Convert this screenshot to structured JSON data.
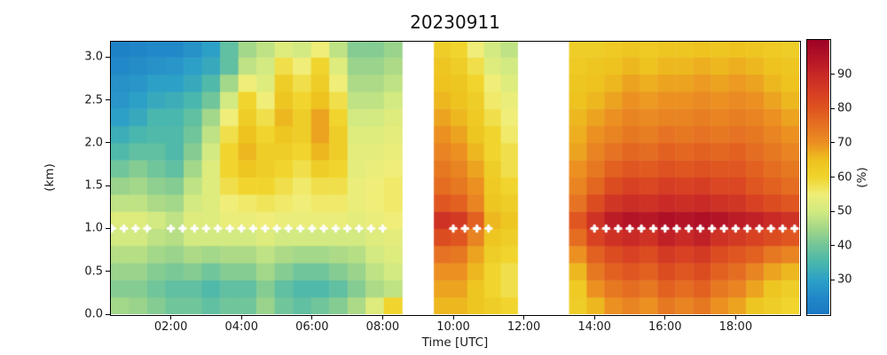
{
  "figure": {
    "background": "#ffffff"
  },
  "chart_data": {
    "type": "heatmap",
    "title": "20230911",
    "xlabel": "Time [UTC]",
    "ylabel": "(km)",
    "colorbar_label": "(%)",
    "xlim_hours": [
      0.3,
      19.8
    ],
    "ylim_km": [
      0,
      3.18
    ],
    "grid": false,
    "xtick_hours": [
      2,
      4,
      6,
      8,
      10,
      12,
      14,
      16,
      18
    ],
    "xtick_labels": [
      "02:00",
      "04:00",
      "06:00",
      "08:00",
      "10:00",
      "12:00",
      "14:00",
      "16:00",
      "18:00"
    ],
    "ytick_values": [
      0.0,
      0.5,
      1.0,
      1.5,
      2.0,
      2.5,
      3.0
    ],
    "ytick_labels": [
      "0.0",
      "0.5",
      "1.0",
      "1.5",
      "2.0",
      "2.5",
      "3.0"
    ],
    "colorbar": {
      "vmin": 20,
      "vmax": 100,
      "tick_values": [
        30,
        40,
        50,
        60,
        70,
        80,
        90
      ],
      "tick_labels": [
        "30",
        "40",
        "50",
        "60",
        "70",
        "80",
        "90"
      ],
      "stops": [
        [
          20,
          "#1a78c2"
        ],
        [
          25,
          "#2289c9"
        ],
        [
          30,
          "#2da0c8"
        ],
        [
          35,
          "#49b7ad"
        ],
        [
          40,
          "#71c59b"
        ],
        [
          45,
          "#a3d789"
        ],
        [
          50,
          "#d2ea81"
        ],
        [
          55,
          "#f0ee78"
        ],
        [
          60,
          "#f1d52e"
        ],
        [
          65,
          "#eec31f"
        ],
        [
          70,
          "#ec9022"
        ],
        [
          75,
          "#e67323"
        ],
        [
          80,
          "#e05620"
        ],
        [
          85,
          "#d63e24"
        ],
        [
          90,
          "#c92a26"
        ],
        [
          95,
          "#b31426"
        ],
        [
          100,
          "#a00426"
        ]
      ]
    },
    "altitude_step_km": 0.2,
    "rows_note": "values[0] is the 0.0-0.2 km band (bottom); values[15] is the 3.0-3.2 km band (top); units are relative humidity %",
    "segments": [
      {
        "t_start": 0.3,
        "t_end": 8.55,
        "values": [
          [
            45,
            44,
            42,
            40,
            40,
            38,
            40,
            40,
            44,
            40,
            38,
            40,
            42,
            46,
            52,
            60
          ],
          [
            42,
            42,
            40,
            38,
            38,
            36,
            38,
            38,
            42,
            38,
            36,
            36,
            38,
            42,
            46,
            48
          ],
          [
            44,
            44,
            42,
            41,
            42,
            40,
            42,
            42,
            45,
            42,
            40,
            40,
            42,
            44,
            48,
            50
          ],
          [
            47,
            47,
            45,
            44,
            46,
            45,
            46,
            46,
            48,
            46,
            45,
            45,
            46,
            47,
            50,
            52
          ],
          [
            50,
            50,
            48,
            47,
            50,
            50,
            50,
            50,
            52,
            50,
            50,
            50,
            50,
            50,
            52,
            53
          ],
          [
            52,
            52,
            50,
            48,
            52,
            52,
            54,
            54,
            55,
            54,
            54,
            54,
            54,
            53,
            54,
            55
          ],
          [
            48,
            48,
            46,
            45,
            50,
            52,
            55,
            56,
            57,
            56,
            55,
            56,
            56,
            54,
            55,
            56
          ],
          [
            44,
            45,
            43,
            42,
            48,
            52,
            58,
            60,
            60,
            58,
            56,
            58,
            58,
            54,
            55,
            56
          ],
          [
            40,
            42,
            40,
            38,
            45,
            52,
            60,
            64,
            62,
            60,
            58,
            62,
            60,
            53,
            54,
            55
          ],
          [
            36,
            38,
            38,
            36,
            42,
            50,
            60,
            66,
            62,
            62,
            60,
            66,
            62,
            53,
            53,
            54
          ],
          [
            33,
            35,
            36,
            36,
            40,
            48,
            58,
            65,
            60,
            64,
            62,
            68,
            62,
            52,
            52,
            53
          ],
          [
            30,
            32,
            35,
            35,
            38,
            45,
            55,
            62,
            58,
            66,
            62,
            68,
            60,
            50,
            50,
            52
          ],
          [
            28,
            30,
            32,
            33,
            35,
            40,
            50,
            60,
            55,
            64,
            60,
            65,
            58,
            48,
            48,
            50
          ],
          [
            27,
            28,
            30,
            30,
            32,
            36,
            45,
            55,
            52,
            62,
            58,
            62,
            55,
            46,
            46,
            48
          ],
          [
            25,
            26,
            27,
            28,
            30,
            32,
            38,
            48,
            50,
            58,
            55,
            60,
            52,
            44,
            44,
            46
          ],
          [
            23,
            24,
            25,
            25,
            27,
            30,
            38,
            45,
            48,
            52,
            50,
            55,
            48,
            42,
            42,
            44
          ]
        ]
      },
      {
        "t_start": 9.45,
        "t_end": 11.82,
        "values": [
          [
            66,
            66,
            64,
            62,
            60
          ],
          [
            68,
            68,
            64,
            60,
            58
          ],
          [
            70,
            70,
            66,
            60,
            58
          ],
          [
            75,
            74,
            68,
            62,
            60
          ],
          [
            82,
            80,
            72,
            64,
            62
          ],
          [
            88,
            86,
            78,
            66,
            64
          ],
          [
            80,
            78,
            72,
            64,
            62
          ],
          [
            76,
            74,
            70,
            63,
            60
          ],
          [
            74,
            72,
            68,
            62,
            58
          ],
          [
            72,
            70,
            66,
            60,
            58
          ],
          [
            70,
            68,
            64,
            60,
            56
          ],
          [
            68,
            66,
            63,
            58,
            55
          ],
          [
            66,
            65,
            62,
            56,
            54
          ],
          [
            65,
            64,
            60,
            55,
            52
          ],
          [
            64,
            62,
            58,
            52,
            50
          ],
          [
            62,
            60,
            55,
            50,
            48
          ]
        ]
      },
      {
        "t_start": 13.28,
        "t_end": 19.8,
        "values": [
          [
            62,
            66,
            70,
            72,
            70,
            74,
            72,
            74,
            70,
            68,
            64,
            62,
            60
          ],
          [
            63,
            70,
            74,
            76,
            74,
            78,
            76,
            78,
            74,
            72,
            68,
            64,
            62
          ],
          [
            66,
            74,
            78,
            80,
            78,
            82,
            80,
            82,
            78,
            76,
            72,
            68,
            66
          ],
          [
            70,
            78,
            82,
            84,
            82,
            86,
            84,
            86,
            82,
            80,
            78,
            74,
            72
          ],
          [
            76,
            84,
            88,
            90,
            88,
            92,
            90,
            92,
            88,
            86,
            84,
            82,
            80
          ],
          [
            80,
            88,
            93,
            95,
            94,
            96,
            95,
            96,
            95,
            93,
            92,
            90,
            88
          ],
          [
            75,
            82,
            87,
            89,
            88,
            90,
            89,
            90,
            88,
            87,
            84,
            82,
            80
          ],
          [
            72,
            77,
            82,
            84,
            83,
            85,
            84,
            85,
            83,
            83,
            80,
            78,
            76
          ],
          [
            70,
            74,
            78,
            80,
            79,
            81,
            80,
            81,
            80,
            80,
            78,
            76,
            74
          ],
          [
            68,
            72,
            75,
            77,
            76,
            78,
            77,
            78,
            77,
            78,
            76,
            74,
            72
          ],
          [
            67,
            70,
            72,
            74,
            73,
            75,
            74,
            75,
            74,
            75,
            74,
            72,
            70
          ],
          [
            66,
            68,
            70,
            72,
            71,
            72,
            72,
            73,
            72,
            73,
            72,
            70,
            68
          ],
          [
            65,
            66,
            68,
            70,
            69,
            70,
            70,
            71,
            70,
            71,
            70,
            68,
            66
          ],
          [
            64,
            65,
            66,
            68,
            67,
            68,
            68,
            69,
            68,
            69,
            68,
            66,
            65
          ],
          [
            63,
            64,
            65,
            66,
            65,
            66,
            66,
            67,
            66,
            67,
            66,
            65,
            64
          ],
          [
            62,
            62,
            63,
            64,
            63,
            64,
            64,
            65,
            64,
            65,
            64,
            63,
            62
          ]
        ]
      }
    ],
    "markers": {
      "shape": "plus",
      "color": "#ffffff",
      "altitude_km": 1.0,
      "times_hours": [
        0.33,
        0.67,
        1.0,
        1.33,
        2.0,
        2.33,
        2.67,
        3.0,
        3.33,
        3.67,
        4.0,
        4.33,
        4.67,
        5.0,
        5.33,
        5.67,
        6.0,
        6.33,
        6.67,
        7.0,
        7.33,
        7.67,
        8.0,
        10.0,
        10.33,
        10.67,
        11.0,
        14.0,
        14.33,
        14.67,
        15.0,
        15.33,
        15.67,
        16.0,
        16.33,
        16.67,
        17.0,
        17.33,
        17.67,
        18.0,
        18.33,
        18.67,
        19.0,
        19.33,
        19.67
      ]
    }
  }
}
